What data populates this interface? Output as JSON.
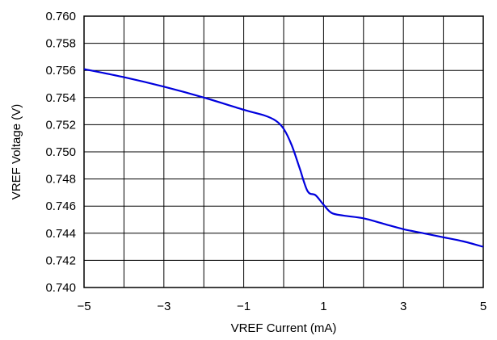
{
  "chart_data": {
    "type": "line",
    "xlabel": "VREF Current (mA)",
    "ylabel": "VREF Voltage (V)",
    "xlim": [
      -5,
      5
    ],
    "ylim": [
      0.74,
      0.76
    ],
    "x_ticks": [
      -5,
      -3,
      -1,
      1,
      3,
      5
    ],
    "x_tick_labels": [
      "−5",
      "−3",
      "−1",
      "1",
      "3",
      "5"
    ],
    "y_ticks": [
      0.74,
      0.742,
      0.744,
      0.746,
      0.748,
      0.75,
      0.752,
      0.754,
      0.756,
      0.758,
      0.76
    ],
    "y_tick_labels": [
      "0.740",
      "0.742",
      "0.744",
      "0.746",
      "0.748",
      "0.750",
      "0.752",
      "0.754",
      "0.756",
      "0.758",
      "0.760"
    ],
    "x_grid_lines": [
      -5,
      -4,
      -3,
      -2,
      -1,
      0,
      1,
      2,
      3,
      4,
      5
    ],
    "grid": true,
    "series": [
      {
        "color": "#0000dd",
        "x": [
          -5.0,
          -4.0,
          -3.0,
          -2.0,
          -1.0,
          -0.5,
          -0.2,
          0.0,
          0.2,
          0.4,
          0.6,
          0.8,
          1.0,
          1.2,
          1.5,
          2.0,
          2.5,
          3.0,
          3.5,
          4.0,
          4.5,
          5.0
        ],
        "y": [
          0.7561,
          0.7555,
          0.7548,
          0.754,
          0.7531,
          0.7527,
          0.7523,
          0.7517,
          0.7505,
          0.7488,
          0.7471,
          0.7468,
          0.7461,
          0.7455,
          0.7453,
          0.7451,
          0.7447,
          0.7443,
          0.744,
          0.7437,
          0.7434,
          0.743
        ]
      }
    ]
  }
}
